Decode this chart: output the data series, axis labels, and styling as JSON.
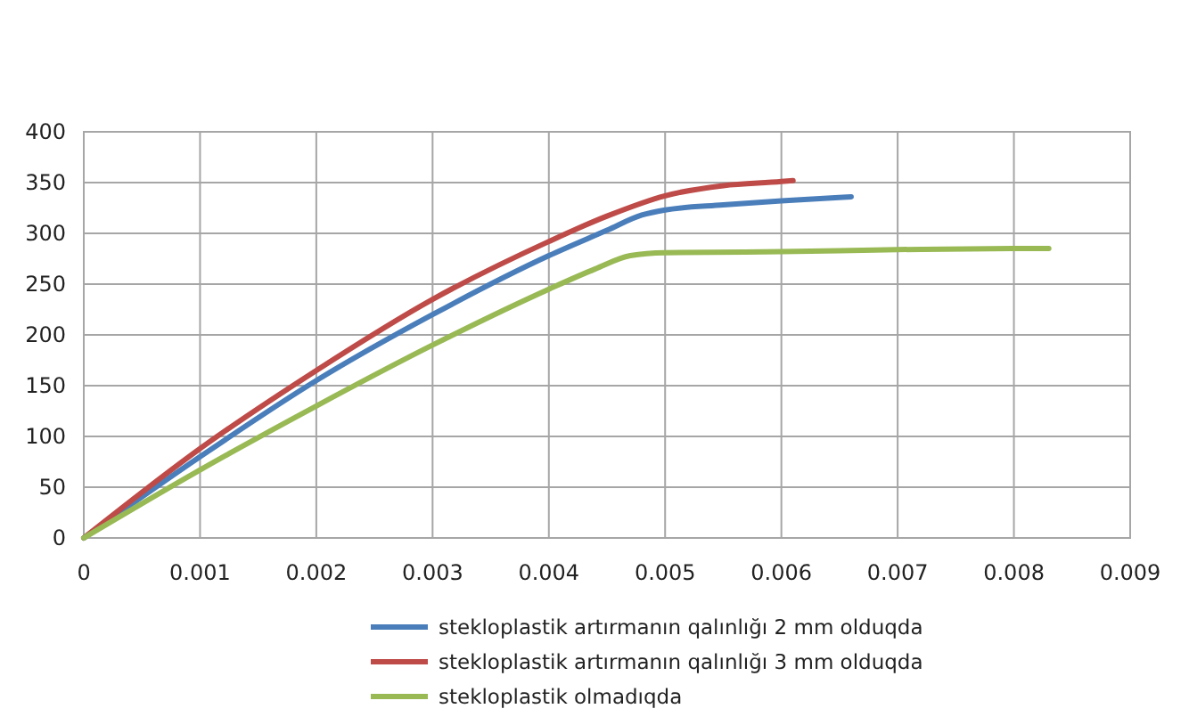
{
  "chart_data": {
    "type": "line",
    "xlim": [
      0,
      0.009
    ],
    "xticks": [
      0,
      0.001,
      0.002,
      0.003,
      0.004,
      0.005,
      0.006,
      0.007,
      0.008,
      0.009
    ],
    "ylim": [
      0,
      400
    ],
    "yticks": [
      0,
      50,
      100,
      150,
      200,
      250,
      300,
      350,
      400
    ],
    "grid": true,
    "legend": "bottom",
    "marker": "none",
    "line_style": "solid",
    "series": [
      {
        "name": "stekloplastik artırmanın qalınlığı 2 mm olduqda",
        "color": "#4a7ebb",
        "x": [
          0,
          0.001,
          0.002,
          0.003,
          0.004,
          0.0045,
          0.0048,
          0.005,
          0.0055,
          0.006,
          0.0066
        ],
        "values": [
          0,
          80,
          155,
          220,
          278,
          303,
          318,
          323,
          328,
          332,
          336
        ]
      },
      {
        "name": "stekloplastik artırmanın qalınlığı 3 mm olduqda",
        "color": "#be4b48",
        "x": [
          0,
          0.001,
          0.002,
          0.003,
          0.004,
          0.0045,
          0.005,
          0.0055,
          0.006,
          0.0061
        ],
        "values": [
          0,
          88,
          165,
          235,
          292,
          317,
          337,
          347,
          351,
          352
        ]
      },
      {
        "name": "stekloplastik olmadıqda",
        "color": "#98b954",
        "x": [
          0,
          0.001,
          0.002,
          0.003,
          0.004,
          0.0044,
          0.0047,
          0.005,
          0.006,
          0.007,
          0.008,
          0.0083
        ],
        "values": [
          0,
          67,
          130,
          190,
          245,
          265,
          278,
          281,
          282,
          284,
          285,
          285
        ]
      }
    ]
  }
}
